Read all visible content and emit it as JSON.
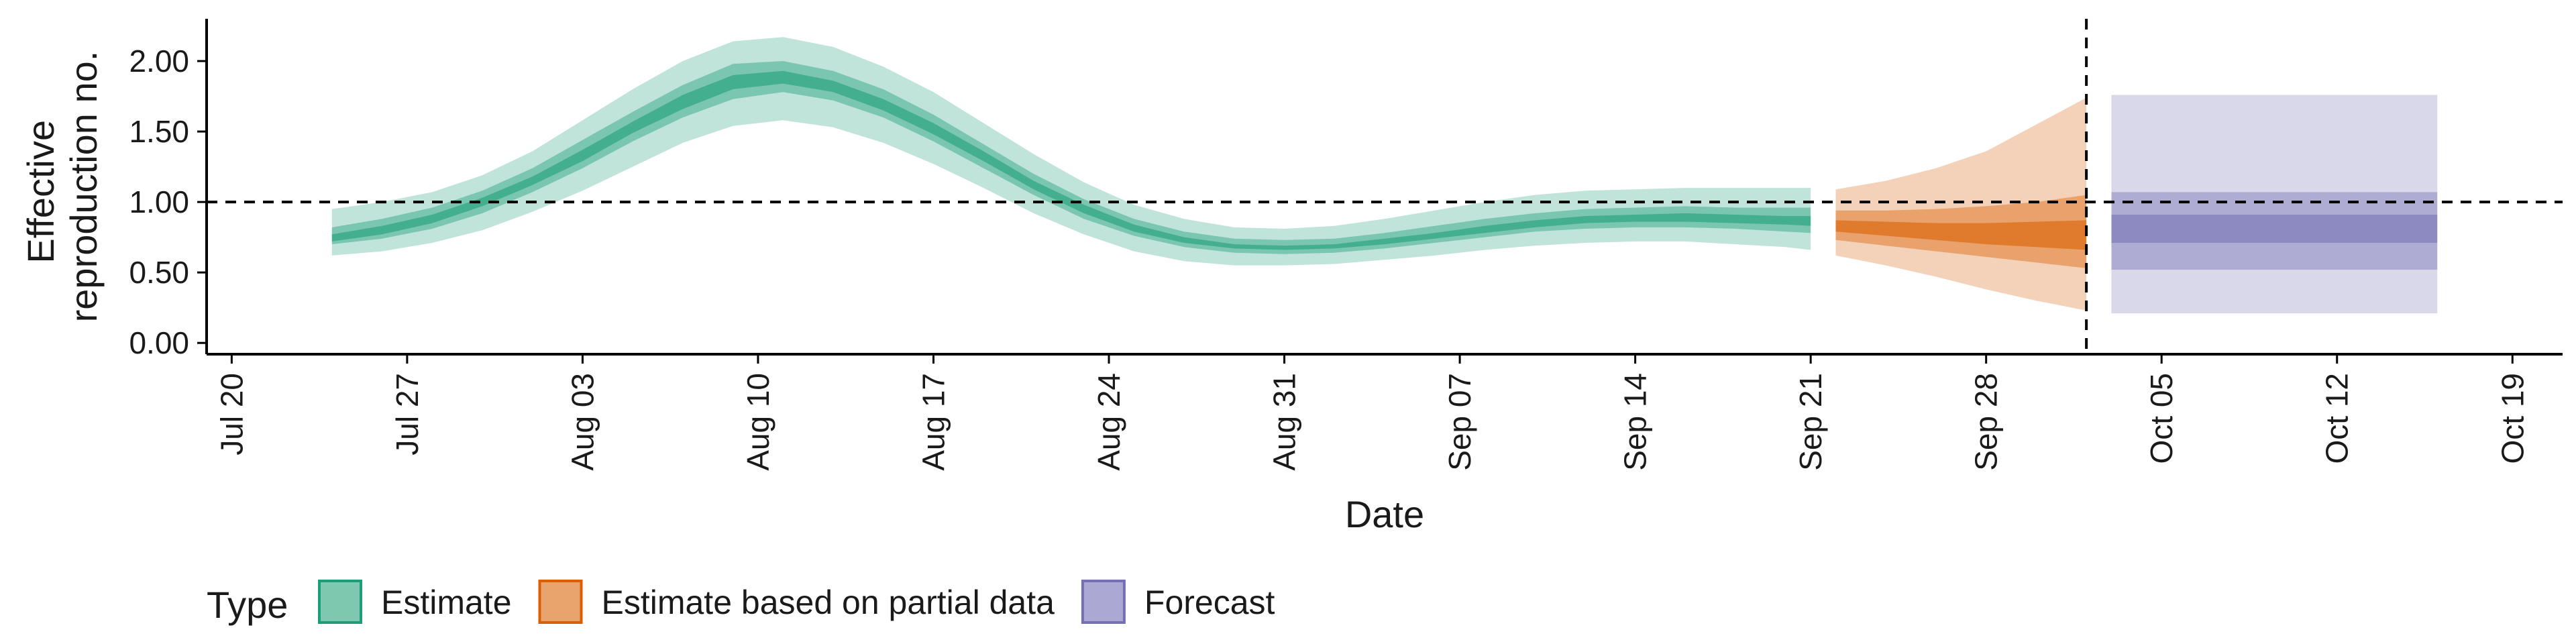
{
  "chart_data": {
    "type": "area",
    "title": "",
    "xlabel": "Date",
    "ylabel": [
      "Effective",
      "reproduction no."
    ],
    "ylim": [
      -0.08,
      2.3
    ],
    "xlim": [
      "2020-07-19",
      "2020-10-21"
    ],
    "y_ticks": [
      {
        "value": 0.0,
        "label": "0.00"
      },
      {
        "value": 0.5,
        "label": "0.50"
      },
      {
        "value": 1.0,
        "label": "1.00"
      },
      {
        "value": 1.5,
        "label": "1.50"
      },
      {
        "value": 2.0,
        "label": "2.00"
      }
    ],
    "x_ticks": [
      {
        "date": "2020-07-20",
        "label": "Jul 20"
      },
      {
        "date": "2020-07-27",
        "label": "Jul 27"
      },
      {
        "date": "2020-08-03",
        "label": "Aug 03"
      },
      {
        "date": "2020-08-10",
        "label": "Aug 10"
      },
      {
        "date": "2020-08-17",
        "label": "Aug 17"
      },
      {
        "date": "2020-08-24",
        "label": "Aug 24"
      },
      {
        "date": "2020-08-31",
        "label": "Aug 31"
      },
      {
        "date": "2020-09-07",
        "label": "Sep 07"
      },
      {
        "date": "2020-09-14",
        "label": "Sep 14"
      },
      {
        "date": "2020-09-21",
        "label": "Sep 21"
      },
      {
        "date": "2020-09-28",
        "label": "Sep 28"
      },
      {
        "date": "2020-10-05",
        "label": "Oct 05"
      },
      {
        "date": "2020-10-12",
        "label": "Oct 12"
      },
      {
        "date": "2020-10-19",
        "label": "Oct 19"
      }
    ],
    "reference_lines": {
      "horizontal_y": 1.0,
      "vertical_date": "2020-10-02"
    },
    "legend": {
      "title": "Type",
      "position": "bottom-left",
      "entries": [
        {
          "label": "Estimate",
          "fill": "#7fc8b0",
          "stroke": "#1b9e77"
        },
        {
          "label": "Estimate based on partial data",
          "fill": "#e9a46d",
          "stroke": "#d95f02"
        },
        {
          "label": "Forecast",
          "fill": "#aba8d4",
          "stroke": "#7570b3"
        }
      ]
    },
    "series": [
      {
        "name": "Estimate",
        "color": "#1b9e77",
        "points": [
          {
            "x": "2020-07-24",
            "lo90": 0.62,
            "lo50": 0.7,
            "lo20": 0.72,
            "median": 0.74,
            "hi20": 0.77,
            "hi50": 0.82,
            "hi90": 0.95
          },
          {
            "x": "2020-07-26",
            "lo90": 0.65,
            "lo50": 0.74,
            "lo20": 0.77,
            "median": 0.8,
            "hi20": 0.83,
            "hi50": 0.88,
            "hi90": 1.0
          },
          {
            "x": "2020-07-28",
            "lo90": 0.71,
            "lo50": 0.81,
            "lo20": 0.85,
            "median": 0.88,
            "hi20": 0.91,
            "hi50": 0.96,
            "hi90": 1.07
          },
          {
            "x": "2020-07-30",
            "lo90": 0.8,
            "lo50": 0.92,
            "lo20": 0.97,
            "median": 1.0,
            "hi20": 1.03,
            "hi50": 1.08,
            "hi90": 1.19
          },
          {
            "x": "2020-08-01",
            "lo90": 0.93,
            "lo50": 1.07,
            "lo20": 1.12,
            "median": 1.15,
            "hi20": 1.18,
            "hi50": 1.24,
            "hi90": 1.36
          },
          {
            "x": "2020-08-03",
            "lo90": 1.08,
            "lo50": 1.24,
            "lo20": 1.29,
            "median": 1.33,
            "hi20": 1.37,
            "hi50": 1.44,
            "hi90": 1.58
          },
          {
            "x": "2020-08-05",
            "lo90": 1.25,
            "lo50": 1.43,
            "lo20": 1.49,
            "median": 1.53,
            "hi20": 1.57,
            "hi50": 1.64,
            "hi90": 1.8
          },
          {
            "x": "2020-08-07",
            "lo90": 1.42,
            "lo50": 1.6,
            "lo20": 1.66,
            "median": 1.71,
            "hi20": 1.76,
            "hi50": 1.83,
            "hi90": 2.0
          },
          {
            "x": "2020-08-09",
            "lo90": 1.54,
            "lo50": 1.73,
            "lo20": 1.8,
            "median": 1.85,
            "hi20": 1.9,
            "hi50": 1.98,
            "hi90": 2.14
          },
          {
            "x": "2020-08-11",
            "lo90": 1.58,
            "lo50": 1.78,
            "lo20": 1.84,
            "median": 1.88,
            "hi20": 1.93,
            "hi50": 2.0,
            "hi90": 2.17
          },
          {
            "x": "2020-08-13",
            "lo90": 1.53,
            "lo50": 1.72,
            "lo20": 1.78,
            "median": 1.82,
            "hi20": 1.86,
            "hi50": 1.93,
            "hi90": 2.1
          },
          {
            "x": "2020-08-15",
            "lo90": 1.42,
            "lo50": 1.6,
            "lo20": 1.65,
            "median": 1.69,
            "hi20": 1.73,
            "hi50": 1.8,
            "hi90": 1.96
          },
          {
            "x": "2020-08-17",
            "lo90": 1.27,
            "lo50": 1.43,
            "lo20": 1.48,
            "median": 1.52,
            "hi20": 1.56,
            "hi50": 1.62,
            "hi90": 1.78
          },
          {
            "x": "2020-08-19",
            "lo90": 1.1,
            "lo50": 1.24,
            "lo20": 1.29,
            "median": 1.32,
            "hi20": 1.36,
            "hi50": 1.41,
            "hi90": 1.56
          },
          {
            "x": "2020-08-21",
            "lo90": 0.92,
            "lo50": 1.05,
            "lo20": 1.09,
            "median": 1.12,
            "hi20": 1.15,
            "hi50": 1.2,
            "hi90": 1.34
          },
          {
            "x": "2020-08-23",
            "lo90": 0.77,
            "lo50": 0.88,
            "lo20": 0.92,
            "median": 0.95,
            "hi20": 0.98,
            "hi50": 1.02,
            "hi90": 1.14
          },
          {
            "x": "2020-08-25",
            "lo90": 0.65,
            "lo50": 0.76,
            "lo20": 0.79,
            "median": 0.81,
            "hi20": 0.84,
            "hi50": 0.88,
            "hi90": 0.98
          },
          {
            "x": "2020-08-27",
            "lo90": 0.58,
            "lo50": 0.68,
            "lo20": 0.71,
            "median": 0.73,
            "hi20": 0.75,
            "hi50": 0.79,
            "hi90": 0.88
          },
          {
            "x": "2020-08-29",
            "lo90": 0.55,
            "lo50": 0.64,
            "lo20": 0.67,
            "median": 0.68,
            "hi20": 0.7,
            "hi50": 0.74,
            "hi90": 0.82
          },
          {
            "x": "2020-08-31",
            "lo90": 0.55,
            "lo50": 0.63,
            "lo20": 0.66,
            "median": 0.67,
            "hi20": 0.69,
            "hi50": 0.73,
            "hi90": 0.81
          },
          {
            "x": "2020-09-02",
            "lo90": 0.56,
            "lo50": 0.64,
            "lo20": 0.67,
            "median": 0.68,
            "hi20": 0.7,
            "hi50": 0.74,
            "hi90": 0.83
          },
          {
            "x": "2020-09-04",
            "lo90": 0.59,
            "lo50": 0.67,
            "lo20": 0.7,
            "median": 0.72,
            "hi20": 0.74,
            "hi50": 0.78,
            "hi90": 0.88
          },
          {
            "x": "2020-09-06",
            "lo90": 0.62,
            "lo50": 0.71,
            "lo20": 0.74,
            "median": 0.76,
            "hi20": 0.78,
            "hi50": 0.83,
            "hi90": 0.94
          },
          {
            "x": "2020-09-08",
            "lo90": 0.66,
            "lo50": 0.75,
            "lo20": 0.78,
            "median": 0.8,
            "hi20": 0.83,
            "hi50": 0.88,
            "hi90": 1.0
          },
          {
            "x": "2020-09-10",
            "lo90": 0.69,
            "lo50": 0.79,
            "lo20": 0.82,
            "median": 0.85,
            "hi20": 0.87,
            "hi50": 0.92,
            "hi90": 1.05
          },
          {
            "x": "2020-09-12",
            "lo90": 0.71,
            "lo50": 0.81,
            "lo20": 0.85,
            "median": 0.87,
            "hi20": 0.9,
            "hi50": 0.95,
            "hi90": 1.08
          },
          {
            "x": "2020-09-14",
            "lo90": 0.72,
            "lo50": 0.82,
            "lo20": 0.86,
            "median": 0.88,
            "hi20": 0.91,
            "hi50": 0.96,
            "hi90": 1.09
          },
          {
            "x": "2020-09-16",
            "lo90": 0.72,
            "lo50": 0.82,
            "lo20": 0.86,
            "median": 0.89,
            "hi20": 0.92,
            "hi50": 0.97,
            "hi90": 1.1
          },
          {
            "x": "2020-09-18",
            "lo90": 0.7,
            "lo50": 0.81,
            "lo20": 0.85,
            "median": 0.88,
            "hi20": 0.91,
            "hi50": 0.96,
            "hi90": 1.1
          },
          {
            "x": "2020-09-20",
            "lo90": 0.68,
            "lo50": 0.79,
            "lo20": 0.84,
            "median": 0.87,
            "hi20": 0.9,
            "hi50": 0.96,
            "hi90": 1.1
          },
          {
            "x": "2020-09-21",
            "lo90": 0.66,
            "lo50": 0.78,
            "lo20": 0.83,
            "median": 0.86,
            "hi20": 0.9,
            "hi50": 0.96,
            "hi90": 1.1
          }
        ]
      },
      {
        "name": "Estimate based on partial data",
        "color": "#d95f02",
        "points": [
          {
            "x": "2020-09-22",
            "lo90": 0.62,
            "lo50": 0.73,
            "lo20": 0.79,
            "median": 0.83,
            "hi20": 0.87,
            "hi50": 0.94,
            "hi90": 1.09
          },
          {
            "x": "2020-09-24",
            "lo90": 0.55,
            "lo50": 0.69,
            "lo20": 0.76,
            "median": 0.81,
            "hi20": 0.86,
            "hi50": 0.94,
            "hi90": 1.15
          },
          {
            "x": "2020-09-26",
            "lo90": 0.47,
            "lo50": 0.65,
            "lo20": 0.73,
            "median": 0.79,
            "hi20": 0.85,
            "hi50": 0.95,
            "hi90": 1.24
          },
          {
            "x": "2020-09-28",
            "lo90": 0.38,
            "lo50": 0.61,
            "lo20": 0.7,
            "median": 0.78,
            "hi20": 0.85,
            "hi50": 0.97,
            "hi90": 1.36
          },
          {
            "x": "2020-09-30",
            "lo90": 0.3,
            "lo50": 0.57,
            "lo20": 0.68,
            "median": 0.77,
            "hi20": 0.86,
            "hi50": 1.0,
            "hi90": 1.55
          },
          {
            "x": "2020-10-02",
            "lo90": 0.23,
            "lo50": 0.53,
            "lo20": 0.66,
            "median": 0.76,
            "hi20": 0.87,
            "hi50": 1.05,
            "hi90": 1.74
          }
        ]
      },
      {
        "name": "Forecast",
        "color": "#7570b3",
        "points": [
          {
            "x": "2020-10-03",
            "lo90": 0.21,
            "lo50": 0.52,
            "lo20": 0.71,
            "median": 0.81,
            "hi20": 0.91,
            "hi50": 1.07,
            "hi90": 1.76
          },
          {
            "x": "2020-10-16",
            "lo90": 0.21,
            "lo50": 0.52,
            "lo20": 0.71,
            "median": 0.81,
            "hi20": 0.91,
            "hi50": 1.07,
            "hi90": 1.76
          }
        ]
      }
    ]
  }
}
